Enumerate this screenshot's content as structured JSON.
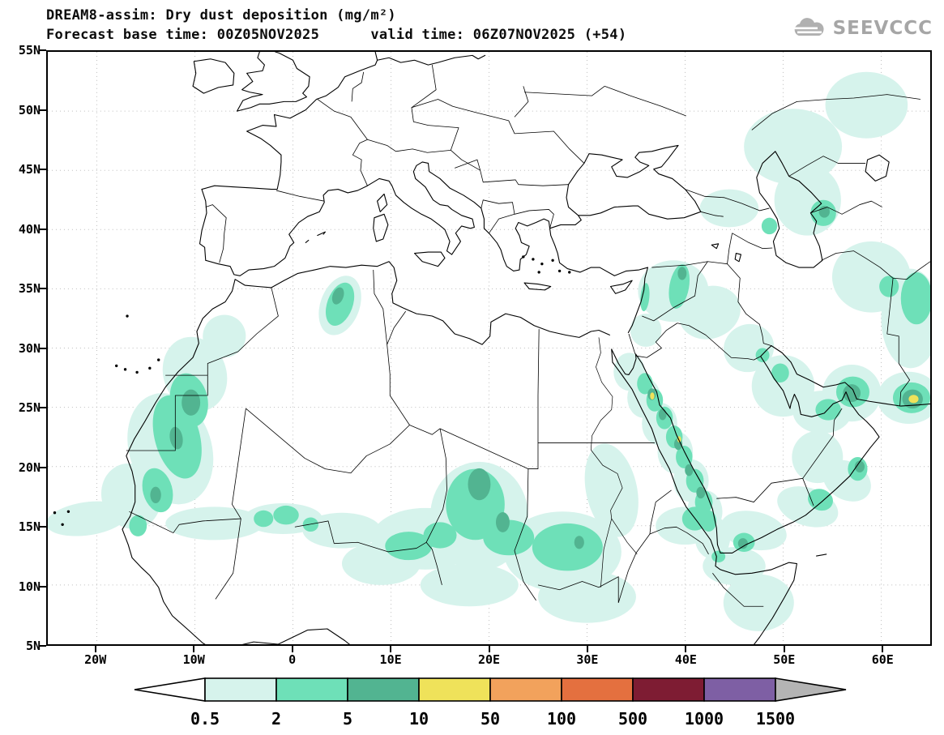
{
  "header": {
    "title_line1": "DREAM8-assim: Dry dust deposition (mg/m²)",
    "title_line2": "Forecast base time: 00Z05NOV2025      valid time: 06Z07NOV2025 (+54)",
    "model": "DREAM8-assim",
    "variable": "Dry dust deposition",
    "units": "mg/m²",
    "base_time": "00Z05NOV2025",
    "valid_time": "06Z07NOV2025",
    "lead": "+54"
  },
  "logo": {
    "text": "SEEVCCC",
    "color": "#a6a6a6"
  },
  "map": {
    "extent": {
      "lon_min": -25,
      "lon_max": 65,
      "lat_min": 5,
      "lat_max": 55
    },
    "lat_ticks": [
      {
        "label": "55N",
        "value": 55
      },
      {
        "label": "50N",
        "value": 50
      },
      {
        "label": "45N",
        "value": 45
      },
      {
        "label": "40N",
        "value": 40
      },
      {
        "label": "35N",
        "value": 35
      },
      {
        "label": "30N",
        "value": 30
      },
      {
        "label": "25N",
        "value": 25
      },
      {
        "label": "20N",
        "value": 20
      },
      {
        "label": "15N",
        "value": 15
      },
      {
        "label": "10N",
        "value": 10
      },
      {
        "label": "5N",
        "value": 5
      }
    ],
    "lon_ticks": [
      {
        "label": "20W",
        "value": -20
      },
      {
        "label": "10W",
        "value": -10
      },
      {
        "label": "0",
        "value": 0
      },
      {
        "label": "10E",
        "value": 10
      },
      {
        "label": "20E",
        "value": 20
      },
      {
        "label": "30E",
        "value": 30
      },
      {
        "label": "40E",
        "value": 40
      },
      {
        "label": "50E",
        "value": 50
      },
      {
        "label": "60E",
        "value": 60
      }
    ]
  },
  "colorbar": {
    "labels": [
      "0.5",
      "2",
      "5",
      "10",
      "50",
      "100",
      "500",
      "1000",
      "1500"
    ],
    "colors": [
      "#d6f3ec",
      "#6ee0b8",
      "#52b491",
      "#efe25a",
      "#f2a25c",
      "#e4703f",
      "#7e1c33",
      "#7e5fa4"
    ],
    "under_color": "#ffffff",
    "over_color": "#b4b4b4"
  },
  "chart_data": {
    "type": "filled_contour_map",
    "title": "DREAM8-assim: Dry dust deposition (mg/m²)",
    "units": "mg/m²",
    "levels": [
      0.5,
      2,
      5,
      10,
      50,
      100,
      500,
      1000,
      1500
    ],
    "palette": [
      "#d6f3ec",
      "#6ee0b8",
      "#52b491",
      "#efe25a",
      "#f2a25c",
      "#e4703f",
      "#7e1c33",
      "#7e5fa4"
    ],
    "extent": {
      "lon_min": -25,
      "lon_max": 65,
      "lat_min": 5,
      "lat_max": 55
    },
    "legend_position": "bottom",
    "grid": "dotted, 10° lon × 5° lat",
    "regions": [
      {
        "name": "Atlantic offshore plume off Senegal",
        "approx_lon": -21,
        "approx_lat": 16,
        "max_band": "0.5-2"
      },
      {
        "name": "Western Sahara / Mauritania coast",
        "approx_lon": -11,
        "approx_lat": 23,
        "max_band": "5-10"
      },
      {
        "name": "NE Algeria (chott region)",
        "approx_lon": 5,
        "approx_lat": 34,
        "max_band": "5-10"
      },
      {
        "name": "Sahel band Mali-Niger-Chad",
        "approx_lon": 12,
        "approx_lat": 14,
        "max_band": "2-5"
      },
      {
        "name": "Chad/Sudan border maximum",
        "approx_lon": 19,
        "approx_lat": 17,
        "max_band": "5-10"
      },
      {
        "name": "Central Sudan",
        "approx_lon": 28,
        "approx_lat": 13,
        "max_band": "5-10"
      },
      {
        "name": "Red Sea / Hejaz coastal strip",
        "approx_lon": 38,
        "approx_lat": 23,
        "max_band": "10-50"
      },
      {
        "name": "Syria / northern Iraq",
        "approx_lon": 39.5,
        "approx_lat": 35.5,
        "max_band": "5-10"
      },
      {
        "name": "Persian Gulf coast",
        "approx_lon": 50,
        "approx_lat": 27,
        "max_band": "2-5"
      },
      {
        "name": "Strait of Hormuz / Gulf of Oman",
        "approx_lon": 57,
        "approx_lat": 26,
        "max_band": "5-10"
      },
      {
        "name": "Makran coast (far east of domain)",
        "approx_lon": 63,
        "approx_lat": 26,
        "max_band": "10-50"
      },
      {
        "name": "East of Caspian Sea",
        "approx_lon": 54,
        "approx_lat": 41.5,
        "max_band": "5-10"
      },
      {
        "name": "Southern Arabia / Gulf of Aden coast",
        "approx_lon": 50,
        "approx_lat": 15,
        "max_band": "2-5"
      }
    ]
  }
}
